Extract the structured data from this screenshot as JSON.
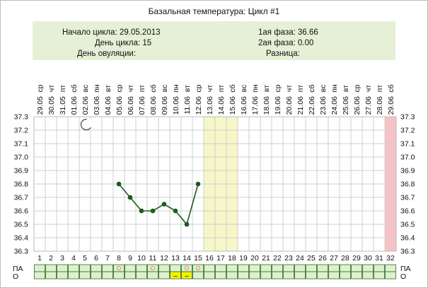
{
  "title": "Базальная температура: Цикл #1",
  "info": {
    "start_label": "Начало цикла:",
    "start_value": "29.05.2013",
    "day_label": "День цикла:",
    "day_value": "15",
    "ovulation_label": "День овуляции:",
    "ovulation_value": "",
    "phase1_label": "1ая фаза:",
    "phase1_value": "36.66",
    "phase2_label": "2ая фаза:",
    "phase2_value": "0.00",
    "diff_label": "Разница:",
    "diff_value": ""
  },
  "row_labels": {
    "pa": "ПА",
    "o": "О"
  },
  "moon_icon": "moon-icon",
  "colors": {
    "line": "#1a5c1a",
    "highlight": "#f6f6c8",
    "pink": "#f5c2c8",
    "cell": "#dff0cc",
    "cell_border": "#2a6e2a",
    "marker": "#ee8888",
    "yellow": "#f2f200"
  },
  "chart_data": {
    "type": "line",
    "ylim": [
      36.3,
      37.3
    ],
    "yticks": [
      "36.3",
      "36.4",
      "36.5",
      "36.6",
      "36.7",
      "36.8",
      "36.9",
      "37.0",
      "37.1",
      "37.2",
      "37.3"
    ],
    "days": [
      1,
      2,
      3,
      4,
      5,
      6,
      7,
      8,
      9,
      10,
      11,
      12,
      13,
      14,
      15,
      16,
      17,
      18,
      19,
      20,
      21,
      22,
      23,
      24,
      25,
      26,
      27,
      28,
      29,
      30,
      31,
      32
    ],
    "weekdays": [
      "ср",
      "чт",
      "пт",
      "сб",
      "вс",
      "пн",
      "вт",
      "ср",
      "чт",
      "пт",
      "сб",
      "вс",
      "пн",
      "вт",
      "ср",
      "чт",
      "пт",
      "сб",
      "вс",
      "пн",
      "вт",
      "ср",
      "чт",
      "пт",
      "сб",
      "вс",
      "пн",
      "вт",
      "ср",
      "чт",
      "пт",
      "сб"
    ],
    "dates": [
      "29.05",
      "30.05",
      "31.05",
      "01.06",
      "02.06",
      "03.06",
      "04.06",
      "05.06",
      "06.06",
      "07.06",
      "08.06",
      "09.06",
      "10.06",
      "11.06",
      "12.06",
      "13.06",
      "14.06",
      "15.06",
      "16.06",
      "17.06",
      "18.06",
      "19.06",
      "20.06",
      "21.06",
      "22.06",
      "23.06",
      "24.06",
      "25.06",
      "26.06",
      "27.06",
      "28.06",
      "29.06"
    ],
    "series": [
      {
        "x": [
          8,
          9,
          10,
          11,
          12,
          13,
          14,
          15
        ],
        "y": [
          36.8,
          36.7,
          36.6,
          36.6,
          36.65,
          36.6,
          36.5,
          36.8
        ]
      }
    ],
    "highlight_days": [
      16,
      17,
      18
    ],
    "end_day": 32,
    "moon_day": 5,
    "pa_marks": [
      8,
      11,
      14,
      15
    ],
    "o_marks": [
      13,
      14
    ],
    "o_mark_text": "–"
  }
}
